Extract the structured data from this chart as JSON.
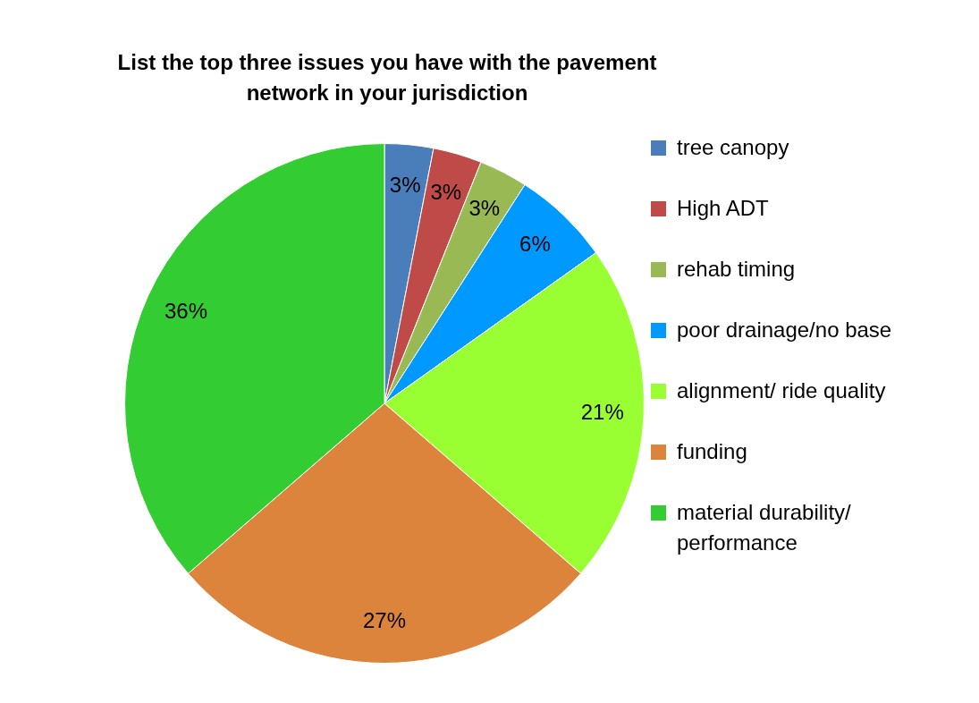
{
  "chart_data": {
    "type": "pie",
    "title": "List the top three issues you have with the pavement network in your jurisdiction",
    "categories": [
      "tree canopy",
      "High ADT",
      "rehab timing",
      "poor drainage/no base",
      "alignment/ ride quality",
      "funding",
      "material durability/ performance"
    ],
    "values": [
      3,
      3,
      3,
      6,
      21,
      27,
      36
    ],
    "colors": [
      "#4a7ebb",
      "#be4b48",
      "#98b954",
      "#0099ff",
      "#99ff33",
      "#dd843c",
      "#33cc33"
    ],
    "value_labels": [
      "3%",
      "3%",
      "3%",
      "6%",
      "21%",
      "27%",
      "36%"
    ],
    "legend": "right"
  }
}
